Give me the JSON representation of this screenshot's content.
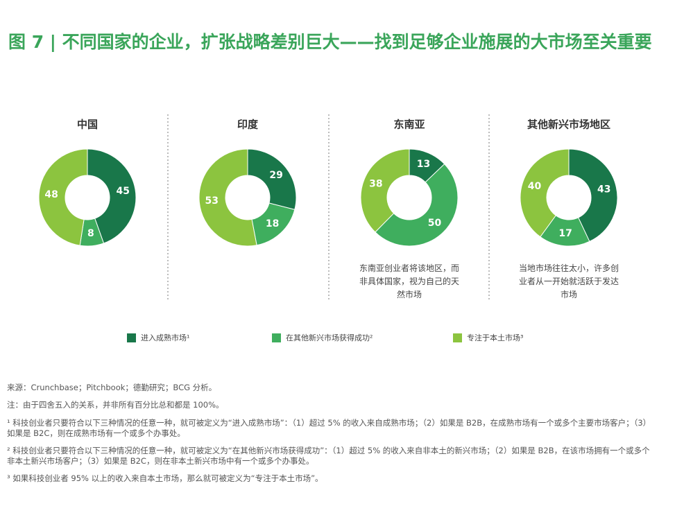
{
  "title": "图 7 | 不同国家的企业，扩张战略差别巨大——找到足够企业施展的大市场至关重要",
  "legend": {
    "items": [
      {
        "label": "进入成熟市场¹",
        "color": "#19774a"
      },
      {
        "label": "在其他新兴市场获得成功²",
        "color": "#3fae5e"
      },
      {
        "label": "专注于本土市场³",
        "color": "#8cc43f"
      }
    ]
  },
  "chart_data": [
    {
      "type": "pie",
      "title": "中国",
      "values": [
        45,
        8,
        48
      ]
    },
    {
      "type": "pie",
      "title": "印度",
      "values": [
        29,
        18,
        53
      ]
    },
    {
      "type": "pie",
      "title": "东南亚",
      "values": [
        13,
        50,
        38
      ],
      "annotation": "东南亚创业者将该地区，而非具体国家，视为自己的天然市场"
    },
    {
      "type": "pie",
      "title": "其他新兴市场地区",
      "values": [
        43,
        17,
        40
      ],
      "annotation": "当地市场往往太小，许多创业者从一开始就活跃于发达市场"
    }
  ],
  "footnotes": [
    "来源：Crunchbase；Pitchbook；德勤研究；BCG 分析。",
    "注：由于四舍五入的关系，并非所有百分比总和都是 100%。",
    "¹ 科技创业者只要符合以下三种情况的任意一种，就可被定义为“进入成熟市场”：（1）超过 5% 的收入来自成熟市场；（2）如果是 B2B，在成熟市场有一个或多个主要市场客户；（3）如果是 B2C，则在成熟市场有一个或多个办事处。",
    "² 科技创业者只要符合以下三种情况的任意一种，就可被定义为“在其他新兴市场获得成功”：（1）超过 5% 的收入来自非本土的新兴市场；（2）如果是 B2B，在该市场拥有一个或多个非本土新兴市场客户；（3）如果是 B2C，则在非本土新兴市场中有一个或多个办事处。",
    "³ 如果科技创业者 95% 以上的收入来自本土市场，那么就可被定义为“专注于本土市场”。"
  ]
}
